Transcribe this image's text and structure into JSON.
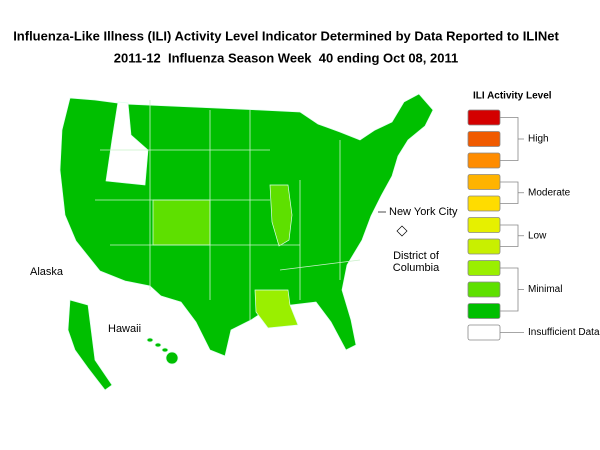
{
  "header": {
    "title": "Influenza-Like Illness (ILI) Activity Level Indicator Determined by Data Reported to ILINet",
    "subtitle": "2011-12  Influenza Season Week  40 ending Oct 08, 2011"
  },
  "map": {
    "labels": {
      "alaska": "Alaska",
      "hawaii": "Hawaii",
      "nyc": "New York City",
      "dc": [
        "District of",
        "Columbia"
      ]
    }
  },
  "legend": {
    "title": "ILI Activity Level",
    "levels": [
      {
        "label": "High",
        "colors": [
          "#d40000",
          "#f05a00",
          "#ff8c00"
        ]
      },
      {
        "label": "Moderate",
        "colors": [
          "#ffb300",
          "#ffdc00"
        ]
      },
      {
        "label": "Low",
        "colors": [
          "#e6f000",
          "#c8f000"
        ]
      },
      {
        "label": "Minimal",
        "colors": [
          "#9aef00",
          "#5ee000",
          "#00bf00"
        ]
      },
      {
        "label": "Insufficient Data",
        "colors": [
          "#ffffff"
        ]
      }
    ]
  }
}
